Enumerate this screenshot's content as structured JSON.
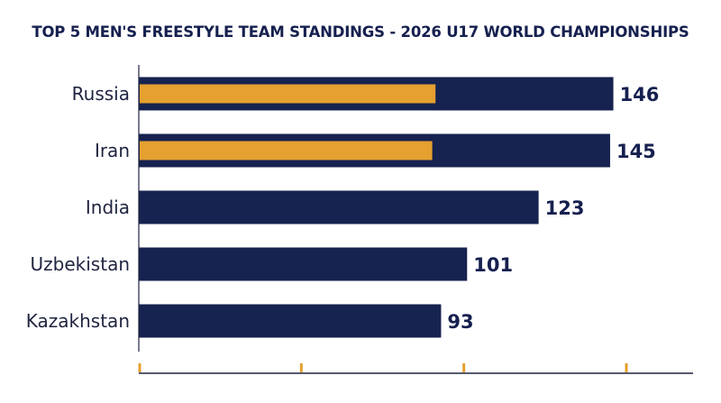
{
  "chart_data": {
    "type": "bar",
    "orientation": "horizontal",
    "title": "TOP 5 MEN'S FREESTYLE TEAM STANDINGS - 2026 U17 WORLD CHAMPIONSHIPS",
    "categories": [
      "Russia",
      "Iran",
      "India",
      "Uzbekistan",
      "Kazakhstan"
    ],
    "series": [
      {
        "values": [
          146,
          145,
          123,
          101,
          93
        ]
      },
      {
        "values": [
          91,
          90,
          null,
          null,
          null
        ]
      }
    ],
    "data_labels": [
      "146",
      "145",
      "123",
      "101",
      "93"
    ],
    "xlim": [
      0,
      150
    ],
    "grid": false,
    "colors": {
      "primary": "#16224f",
      "highlight": "#e5a030",
      "axis": "#1f2440",
      "tick": "#e5a030"
    }
  }
}
